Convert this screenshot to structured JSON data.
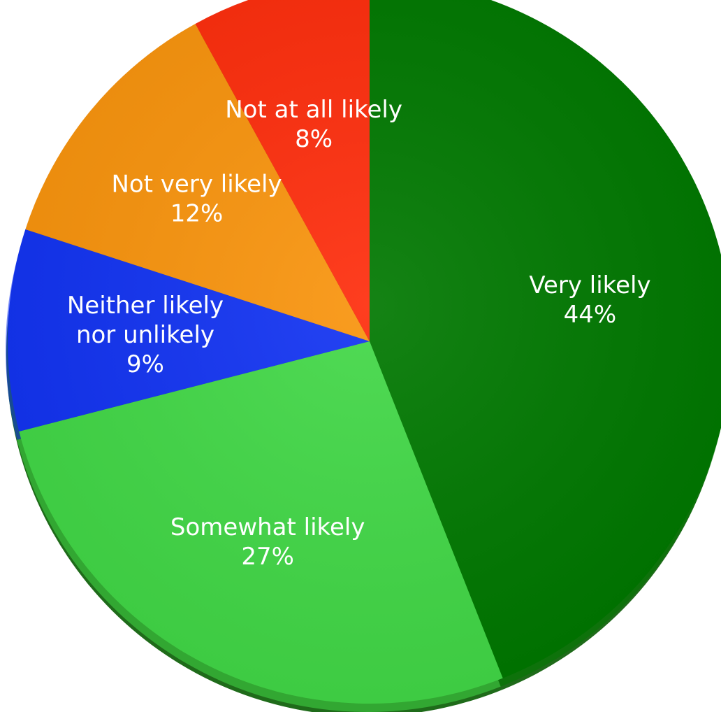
{
  "chart_data": {
    "type": "pie",
    "title": "",
    "start": "12 o'clock",
    "direction": "clockwise",
    "slices": [
      {
        "label": [
          "Very likely"
        ],
        "value": 44,
        "value_label": "44%",
        "color": "#007800"
      },
      {
        "label": [
          "Somewhat likely"
        ],
        "value": 27,
        "value_label": "27%",
        "color": "#42d847"
      },
      {
        "label": [
          "Neither likely",
          "nor unlikely"
        ],
        "value": 9,
        "value_label": "9%",
        "color": "#1233f2"
      },
      {
        "label": [
          "Not very likely"
        ],
        "value": 12,
        "value_label": "12%",
        "color": "#f9940d"
      },
      {
        "label": [
          "Not at all likely"
        ],
        "value": 8,
        "value_label": "8%",
        "color": "#fe2d0c"
      }
    ]
  }
}
